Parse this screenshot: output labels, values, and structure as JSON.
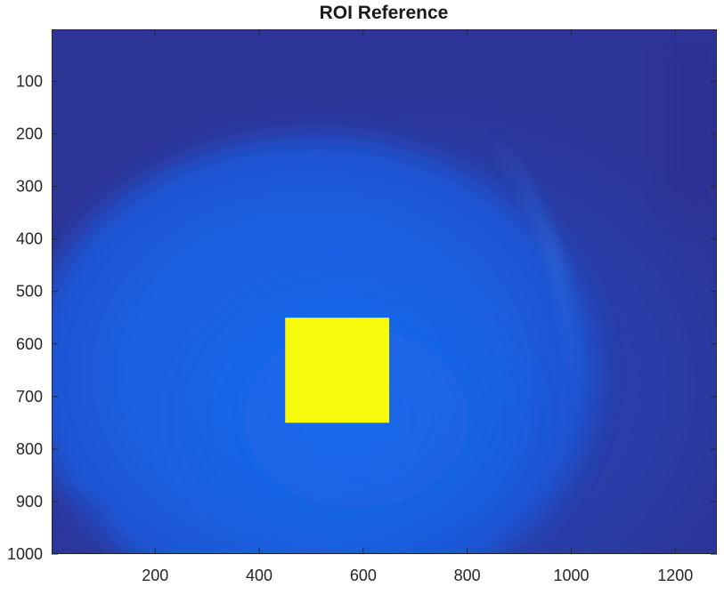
{
  "chart_data": {
    "type": "heatmap",
    "title": "ROI Reference",
    "xlabel": "",
    "ylabel": "",
    "xlim": [
      1,
      1280
    ],
    "ylim": [
      1,
      1000
    ],
    "y_direction": "reversed",
    "x_ticks": [
      200,
      400,
      600,
      800,
      1000,
      1200
    ],
    "x_tick_labels": [
      "200",
      "400",
      "600",
      "800",
      "1000",
      "1200"
    ],
    "y_ticks": [
      100,
      200,
      300,
      400,
      500,
      600,
      700,
      800,
      900,
      1000
    ],
    "y_tick_labels": [
      "100",
      "200",
      "300",
      "400",
      "500",
      "600",
      "700",
      "800",
      "900",
      "1000"
    ],
    "colormap": "parula",
    "roi": {
      "x": [
        450,
        650
      ],
      "y": [
        550,
        750
      ],
      "color": "#f9fb0e"
    },
    "colors": {
      "background_dark": "#2d3597",
      "field_mid": "#1f4fd0",
      "field_bright": "#1a64e6",
      "roi": "#f9fb0e"
    },
    "grid": false,
    "legend": "none"
  }
}
